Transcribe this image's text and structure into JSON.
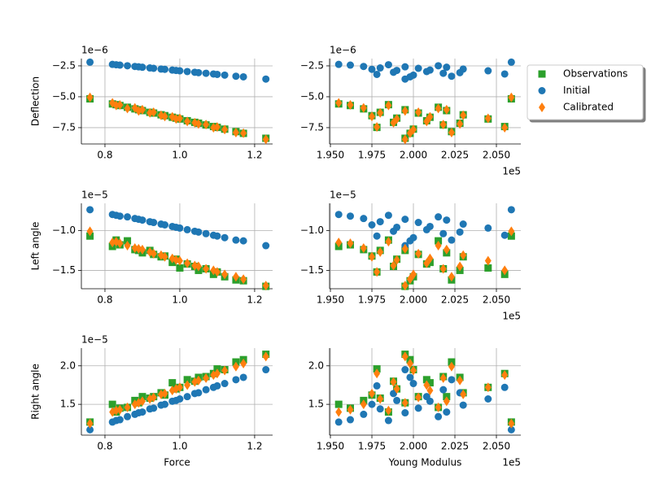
{
  "chart_data": [
    {
      "type": "scatter",
      "ylabel": "Deflection",
      "yoffset": "1e−6",
      "x": [
        0.76,
        0.82,
        0.83,
        0.84,
        0.86,
        0.88,
        0.89,
        0.9,
        0.92,
        0.93,
        0.95,
        0.96,
        0.98,
        0.99,
        1.0,
        1.02,
        1.04,
        1.05,
        1.07,
        1.09,
        1.1,
        1.12,
        1.15,
        1.17,
        1.23
      ],
      "xlim": [
        0.737,
        1.248
      ],
      "xticks": [
        0.8,
        {
          "value": 1,
          "label": "1.0"
        },
        1.2
      ],
      "ylim": [
        -8.82,
        -1.91
      ],
      "yticks": [
        {
          "value": -7.5,
          "label": "−7.5"
        },
        {
          "value": -5,
          "label": "−5.0"
        },
        {
          "value": -2.5,
          "label": "−2.5"
        }
      ],
      "grid": true,
      "series": [
        {
          "color": "#2ca02c",
          "marker": "square",
          "values": [
            -5.17,
            -5.58,
            -5.64,
            -5.71,
            -5.85,
            -5.98,
            -6.05,
            -6.12,
            -6.26,
            -6.32,
            -6.46,
            -6.53,
            -6.66,
            -6.73,
            -6.8,
            -6.94,
            -7.07,
            -7.14,
            -7.28,
            -7.41,
            -7.48,
            -7.62,
            -7.82,
            -7.96,
            -8.36
          ]
        },
        {
          "color": "#1f77b4",
          "marker": "circle",
          "values": [
            -2.2,
            -2.38,
            -2.41,
            -2.44,
            -2.49,
            -2.55,
            -2.58,
            -2.61,
            -2.67,
            -2.7,
            -2.76,
            -2.78,
            -2.84,
            -2.87,
            -2.9,
            -2.96,
            -3.02,
            -3.05,
            -3.1,
            -3.16,
            -3.19,
            -3.25,
            -3.34,
            -3.39,
            -3.57
          ]
        },
        {
          "color": "#ff7f0e",
          "marker": "diamond",
          "values": [
            -5.05,
            -5.5,
            -5.7,
            -5.66,
            -5.95,
            -5.9,
            -6.15,
            -6.05,
            -6.3,
            -6.25,
            -6.5,
            -6.6,
            -6.62,
            -6.8,
            -6.75,
            -7.0,
            -7.1,
            -7.2,
            -7.25,
            -7.5,
            -7.45,
            -7.65,
            -7.9,
            -7.95,
            -8.45
          ]
        }
      ]
    },
    {
      "type": "scatter",
      "yoffset": "1e−6",
      "xoffset": "1e5",
      "legend": "outside upper right",
      "x": [
        2.059,
        1.955,
        1.985,
        1.962,
        2.015,
        1.97,
        1.995,
        2.02,
        1.98,
        2.003,
        2.03,
        1.975,
        2.01,
        1.99,
        2.045,
        2.008,
        1.988,
        2.028,
        2.018,
        2.055,
        1.978,
        2.0,
        2.023,
        1.998,
        1.995
      ],
      "xlim": [
        1.9495,
        2.0647
      ],
      "xticks": [
        {
          "value": 1.95,
          "label": "1.950"
        },
        {
          "value": 1.975,
          "label": "1.975"
        },
        {
          "value": 2,
          "label": "2.000"
        },
        {
          "value": 2.025,
          "label": "2.025"
        },
        {
          "value": 2.05,
          "label": "2.050"
        }
      ],
      "ylim": [
        -8.82,
        -1.91
      ],
      "yticks": [
        {
          "value": -7.5,
          "label": "−7.5"
        },
        {
          "value": -5,
          "label": "−5.0"
        },
        {
          "value": -2.5,
          "label": "−2.5"
        }
      ],
      "grid": true,
      "series": [
        {
          "name": "Observations",
          "color": "#2ca02c",
          "marker": "square",
          "values": [
            -5.17,
            -5.58,
            -5.64,
            -5.71,
            -5.85,
            -5.98,
            -6.05,
            -6.12,
            -6.26,
            -6.32,
            -6.46,
            -6.53,
            -6.66,
            -6.73,
            -6.8,
            -6.94,
            -7.07,
            -7.14,
            -7.28,
            -7.41,
            -7.48,
            -7.62,
            -7.82,
            -7.96,
            -8.36
          ]
        },
        {
          "name": "Initial",
          "color": "#1f77b4",
          "marker": "circle",
          "values": [
            -2.2,
            -2.38,
            -2.41,
            -2.44,
            -2.49,
            -2.55,
            -2.58,
            -2.61,
            -2.67,
            -2.7,
            -2.76,
            -2.78,
            -2.84,
            -2.87,
            -2.9,
            -2.96,
            -3.02,
            -3.05,
            -3.1,
            -3.16,
            -3.19,
            -3.25,
            -3.34,
            -3.39,
            -3.57
          ]
        },
        {
          "name": "Calibrated",
          "color": "#ff7f0e",
          "marker": "diamond",
          "values": [
            -5.05,
            -5.5,
            -5.7,
            -5.66,
            -5.95,
            -5.9,
            -6.15,
            -6.05,
            -6.3,
            -6.25,
            -6.5,
            -6.6,
            -6.62,
            -6.8,
            -6.75,
            -7.0,
            -7.1,
            -7.2,
            -7.25,
            -7.5,
            -7.45,
            -7.65,
            -7.9,
            -7.95,
            -8.45
          ]
        }
      ]
    },
    {
      "type": "scatter",
      "ylabel": "Left angle",
      "yoffset": "1e−5",
      "x": [
        0.76,
        0.82,
        0.83,
        0.84,
        0.86,
        0.88,
        0.89,
        0.9,
        0.92,
        0.93,
        0.95,
        0.96,
        0.98,
        0.99,
        1.0,
        1.02,
        1.04,
        1.05,
        1.07,
        1.09,
        1.1,
        1.12,
        1.15,
        1.17,
        1.23
      ],
      "xlim": [
        0.737,
        1.248
      ],
      "xticks": [
        0.8,
        {
          "value": 1,
          "label": "1.0"
        },
        1.2
      ],
      "ylim": [
        -1.73,
        -0.66
      ],
      "yticks": [
        {
          "value": -1.5,
          "label": "−1.5"
        },
        {
          "value": -1,
          "label": "−1.0"
        }
      ],
      "grid": true,
      "series": [
        {
          "color": "#2ca02c",
          "marker": "square",
          "values": [
            -1.07,
            -1.2,
            -1.12,
            -1.18,
            -1.13,
            -1.24,
            -1.25,
            -1.28,
            -1.25,
            -1.3,
            -1.33,
            -1.32,
            -1.4,
            -1.36,
            -1.47,
            -1.42,
            -1.45,
            -1.5,
            -1.48,
            -1.55,
            -1.52,
            -1.58,
            -1.62,
            -1.63,
            -1.7
          ]
        },
        {
          "color": "#1f77b4",
          "marker": "circle",
          "values": [
            -0.74,
            -0.8,
            -0.81,
            -0.82,
            -0.83,
            -0.85,
            -0.86,
            -0.87,
            -0.89,
            -0.9,
            -0.92,
            -0.93,
            -0.95,
            -0.96,
            -0.97,
            -0.99,
            -1.01,
            -1.02,
            -1.04,
            -1.06,
            -1.07,
            -1.09,
            -1.12,
            -1.13,
            -1.19
          ]
        },
        {
          "color": "#ff7f0e",
          "marker": "diamond",
          "values": [
            -1.01,
            -1.15,
            -1.14,
            -1.16,
            -1.19,
            -1.22,
            -1.23,
            -1.24,
            -1.27,
            -1.29,
            -1.31,
            -1.33,
            -1.35,
            -1.37,
            -1.38,
            -1.41,
            -1.44,
            -1.45,
            -1.48,
            -1.5,
            -1.52,
            -1.55,
            -1.58,
            -1.61,
            -1.69
          ]
        }
      ]
    },
    {
      "type": "scatter",
      "yoffset": "1e−5",
      "xoffset": "1e5",
      "x": [
        2.059,
        1.955,
        1.985,
        1.962,
        2.015,
        1.97,
        1.995,
        2.02,
        1.98,
        2.003,
        2.03,
        1.975,
        2.01,
        1.99,
        2.045,
        2.008,
        1.988,
        2.028,
        2.018,
        2.055,
        1.978,
        2.0,
        2.023,
        1.998,
        1.995
      ],
      "xlim": [
        1.9495,
        2.0647
      ],
      "xticks": [
        {
          "value": 1.95,
          "label": "1.950"
        },
        {
          "value": 1.975,
          "label": "1.975"
        },
        {
          "value": 2,
          "label": "2.000"
        },
        {
          "value": 2.025,
          "label": "2.025"
        },
        {
          "value": 2.05,
          "label": "2.050"
        }
      ],
      "ylim": [
        -1.73,
        -0.66
      ],
      "yticks": [
        {
          "value": -1.5,
          "label": "−1.5"
        },
        {
          "value": -1,
          "label": "−1.0"
        }
      ],
      "grid": true,
      "series": [
        {
          "color": "#2ca02c",
          "marker": "square",
          "values": [
            -1.07,
            -1.2,
            -1.12,
            -1.18,
            -1.13,
            -1.24,
            -1.25,
            -1.28,
            -1.25,
            -1.3,
            -1.33,
            -1.32,
            -1.4,
            -1.36,
            -1.47,
            -1.42,
            -1.45,
            -1.5,
            -1.48,
            -1.55,
            -1.52,
            -1.58,
            -1.62,
            -1.63,
            -1.7
          ]
        },
        {
          "color": "#1f77b4",
          "marker": "circle",
          "values": [
            -0.74,
            -0.8,
            -0.81,
            -0.82,
            -0.83,
            -0.85,
            -0.86,
            -0.87,
            -0.89,
            -0.9,
            -0.92,
            -0.93,
            -0.95,
            -0.96,
            -0.97,
            -0.99,
            -1.01,
            -1.02,
            -1.04,
            -1.06,
            -1.07,
            -1.09,
            -1.12,
            -1.13,
            -1.19
          ]
        },
        {
          "color": "#ff7f0e",
          "marker": "diamond",
          "values": [
            -1.01,
            -1.15,
            -1.14,
            -1.16,
            -1.19,
            -1.22,
            -1.23,
            -1.24,
            -1.27,
            -1.29,
            -1.31,
            -1.33,
            -1.35,
            -1.37,
            -1.38,
            -1.41,
            -1.44,
            -1.45,
            -1.48,
            -1.5,
            -1.52,
            -1.55,
            -1.58,
            -1.61,
            -1.69
          ]
        }
      ]
    },
    {
      "type": "scatter",
      "ylabel": "Right angle",
      "xlabel": "Force",
      "yoffset": "1e−5",
      "x": [
        0.76,
        0.82,
        0.83,
        0.84,
        0.86,
        0.88,
        0.89,
        0.9,
        0.92,
        0.93,
        0.95,
        0.96,
        0.98,
        0.99,
        1.0,
        1.02,
        1.04,
        1.05,
        1.07,
        1.09,
        1.1,
        1.12,
        1.15,
        1.17,
        1.23
      ],
      "xlim": [
        0.737,
        1.248
      ],
      "xticks": [
        0.8,
        {
          "value": 1,
          "label": "1.0"
        },
        1.2
      ],
      "ylim": [
        1.1,
        2.23
      ],
      "yticks": [
        1.5,
        {
          "value": 2,
          "label": "2.0"
        }
      ],
      "grid": true,
      "series": [
        {
          "color": "#2ca02c",
          "marker": "square",
          "values": [
            1.27,
            1.5,
            1.4,
            1.45,
            1.46,
            1.55,
            1.52,
            1.6,
            1.58,
            1.6,
            1.65,
            1.62,
            1.78,
            1.7,
            1.72,
            1.82,
            1.8,
            1.85,
            1.86,
            1.9,
            1.96,
            1.95,
            2.05,
            2.08,
            2.15
          ]
        },
        {
          "color": "#1f77b4",
          "marker": "circle",
          "values": [
            1.17,
            1.27,
            1.29,
            1.3,
            1.34,
            1.37,
            1.39,
            1.4,
            1.44,
            1.45,
            1.49,
            1.5,
            1.54,
            1.55,
            1.57,
            1.6,
            1.64,
            1.65,
            1.69,
            1.72,
            1.74,
            1.77,
            1.82,
            1.85,
            1.95
          ]
        },
        {
          "color": "#ff7f0e",
          "marker": "diamond",
          "values": [
            1.25,
            1.4,
            1.42,
            1.43,
            1.46,
            1.5,
            1.52,
            1.54,
            1.57,
            1.59,
            1.63,
            1.64,
            1.68,
            1.7,
            1.72,
            1.75,
            1.79,
            1.81,
            1.84,
            1.88,
            1.9,
            1.94,
            1.99,
            2.03,
            2.12
          ]
        }
      ]
    },
    {
      "type": "scatter",
      "xlabel": "Young Modulus",
      "xoffset": "1e5",
      "x": [
        2.059,
        1.955,
        1.985,
        1.962,
        2.015,
        1.97,
        1.995,
        2.02,
        1.98,
        2.003,
        2.03,
        1.975,
        2.01,
        1.99,
        2.045,
        2.008,
        1.988,
        2.028,
        2.018,
        2.055,
        1.978,
        2.0,
        2.023,
        1.998,
        1.995
      ],
      "xlim": [
        1.9495,
        2.0647
      ],
      "xticks": [
        {
          "value": 1.95,
          "label": "1.950"
        },
        {
          "value": 1.975,
          "label": "1.975"
        },
        {
          "value": 2,
          "label": "2.000"
        },
        {
          "value": 2.025,
          "label": "2.025"
        },
        {
          "value": 2.05,
          "label": "2.050"
        }
      ],
      "ylim": [
        1.1,
        2.23
      ],
      "yticks": [
        1.5,
        {
          "value": 2,
          "label": "2.0"
        }
      ],
      "grid": true,
      "series": [
        {
          "color": "#2ca02c",
          "marker": "square",
          "values": [
            1.27,
            1.5,
            1.4,
            1.45,
            1.46,
            1.55,
            1.52,
            1.6,
            1.58,
            1.6,
            1.65,
            1.62,
            1.78,
            1.7,
            1.72,
            1.82,
            1.8,
            1.85,
            1.86,
            1.9,
            1.96,
            1.95,
            2.05,
            2.08,
            2.15
          ]
        },
        {
          "color": "#1f77b4",
          "marker": "circle",
          "values": [
            1.17,
            1.27,
            1.29,
            1.3,
            1.34,
            1.37,
            1.39,
            1.4,
            1.44,
            1.45,
            1.49,
            1.5,
            1.54,
            1.55,
            1.57,
            1.6,
            1.64,
            1.65,
            1.69,
            1.72,
            1.74,
            1.77,
            1.82,
            1.85,
            1.95
          ]
        },
        {
          "color": "#ff7f0e",
          "marker": "diamond",
          "values": [
            1.25,
            1.4,
            1.42,
            1.43,
            1.46,
            1.5,
            1.52,
            1.54,
            1.57,
            1.59,
            1.63,
            1.64,
            1.68,
            1.7,
            1.72,
            1.75,
            1.79,
            1.81,
            1.84,
            1.88,
            1.9,
            1.94,
            1.99,
            2.03,
            2.12
          ]
        }
      ]
    }
  ]
}
